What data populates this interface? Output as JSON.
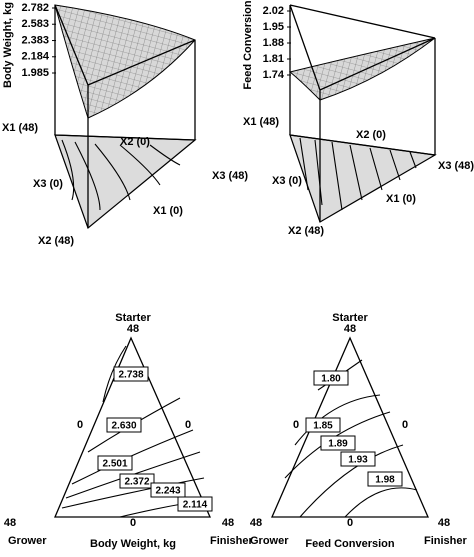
{
  "surfaces": [
    {
      "z_label": "Body Weight, kg",
      "zlim": [
        1.985,
        2.782
      ],
      "zticks": [
        2.782,
        2.583,
        2.383,
        2.184,
        1.985
      ],
      "vertex_labels": [
        "X1 (48)",
        "X2 (0)",
        "X3 (48)",
        "X3 (0)",
        "X1 (0)",
        "X2 (48)"
      ]
    },
    {
      "z_label": "Feed Conversion",
      "zlim": [
        1.74,
        2.02
      ],
      "zticks": [
        2.02,
        1.95,
        1.88,
        1.81,
        1.74
      ],
      "vertex_labels": [
        "X1 (48)",
        "X2 (0)",
        "X3 (48)",
        "X3 (0)",
        "X1 (0)",
        "X2 (48)"
      ]
    }
  ],
  "ternaries": [
    {
      "title": "Body Weight, kg",
      "apex": "Starter",
      "left": "Grower",
      "right": "Finisher",
      "apex_value": 48,
      "left_value": 48,
      "right_value": 48,
      "left_side_value": 0,
      "right_side_value": 0,
      "base_value": 0,
      "values": [
        2.738,
        2.63,
        2.501,
        2.372,
        2.243,
        2.114
      ],
      "value_labels": [
        "2.738",
        "2.630",
        "2.501",
        "2.372",
        "2.243",
        "2.114"
      ]
    },
    {
      "title": "Feed Conversion",
      "apex": "Starter",
      "left": "Grower",
      "right": "Finisher",
      "apex_value": 48,
      "left_value": 48,
      "right_value": 48,
      "left_side_value": 0,
      "right_side_value": 0,
      "base_value": 0,
      "values": [
        1.8,
        1.85,
        1.89,
        1.93,
        1.98
      ],
      "value_labels": [
        "1.80",
        "1.85",
        "1.89",
        "1.93",
        "1.98"
      ]
    }
  ]
}
